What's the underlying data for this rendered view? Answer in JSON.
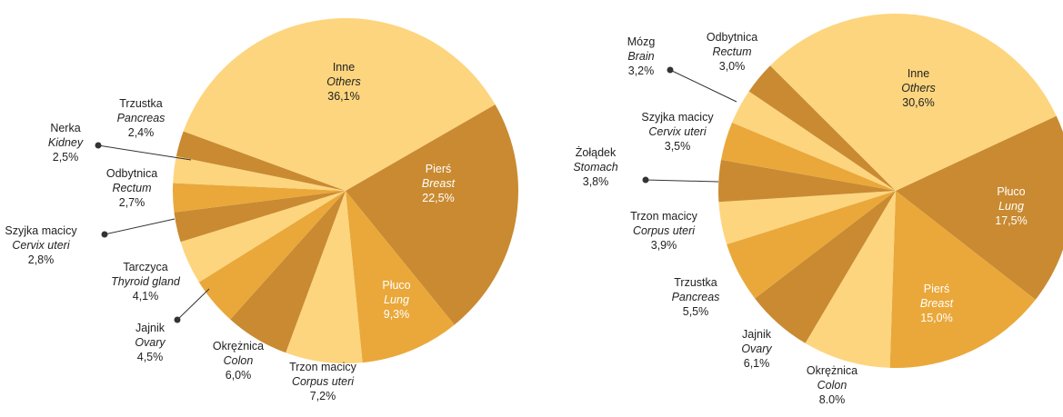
{
  "chart_data": [
    {
      "type": "pie",
      "categories": [
        "Pierś",
        "Płuco",
        "Trzon macicy",
        "Okrężnica",
        "Jajnik",
        "Tarczyca",
        "Szyjka macicy",
        "Odbytnica",
        "Nerka",
        "Trzustka",
        "Inne"
      ],
      "labels_en": [
        "Breast",
        "Lung",
        "Corpus uteri",
        "Colon",
        "Ovary",
        "Thyroid gland",
        "Cervix uteri",
        "Rectum",
        "Kidney",
        "Pancreas",
        "Others"
      ],
      "values": [
        22.5,
        9.3,
        7.2,
        6.0,
        4.5,
        4.1,
        2.8,
        2.7,
        2.5,
        2.4,
        36.1
      ],
      "value_labels": [
        "22,5%",
        "9,3%",
        "7,2%",
        "6,0%",
        "4,5%",
        "4,1%",
        "2,8%",
        "2,7%",
        "2,5%",
        "2,4%",
        "36,1%"
      ],
      "colors": [
        "#c98a31",
        "#eaa83a",
        "#fdd57e",
        "#c98a31",
        "#eaa83a",
        "#fdd57e",
        "#c98a31",
        "#eaa83a",
        "#fdd57e",
        "#c98a31",
        "#fdd57e"
      ]
    },
    {
      "type": "pie",
      "categories": [
        "Płuco",
        "Pierś",
        "Okrężnica",
        "Jajnik",
        "Trzustka",
        "Trzon macicy",
        "Żołądek",
        "Szyjka macicy",
        "Mózg",
        "Odbytnica",
        "Inne"
      ],
      "labels_en": [
        "Lung",
        "Breast",
        "Colon",
        "Ovary",
        "Pancreas",
        "Corpus uteri",
        "Stomach",
        "Cervix uteri",
        "Brain",
        "Rectum",
        "Others"
      ],
      "values": [
        17.5,
        15.0,
        8.0,
        6.1,
        5.5,
        3.9,
        3.8,
        3.5,
        3.2,
        3.0,
        30.6
      ],
      "value_labels": [
        "17,5%",
        "15,0%",
        "8.0%",
        "6,1%",
        "5,5%",
        "3,9%",
        "3,8%",
        "3,5%",
        "3,2%",
        "3,0%",
        "30,6%"
      ],
      "colors": [
        "#c98a31",
        "#eaa83a",
        "#fdd57e",
        "#c98a31",
        "#eaa83a",
        "#fdd57e",
        "#c98a31",
        "#eaa83a",
        "#fdd57e",
        "#c98a31",
        "#fdd57e"
      ]
    }
  ]
}
